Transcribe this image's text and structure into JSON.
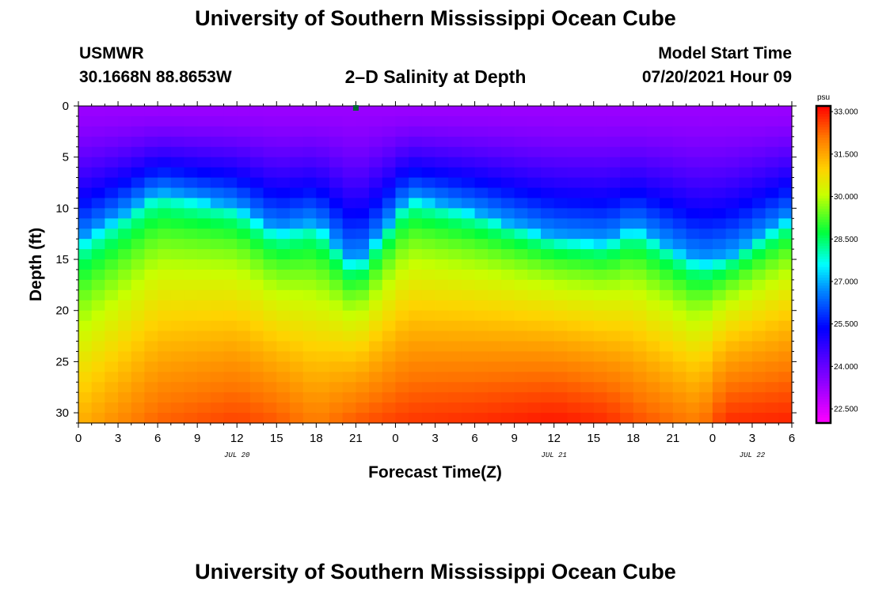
{
  "page": {
    "title_top": "University of Southern Mississippi Ocean Cube",
    "title_bottom": "University of Southern Mississippi Ocean Cube",
    "station": "USMWR",
    "coords": "30.1668N  88.8653W",
    "plot_title": "2–D Salinity at Depth",
    "model_start_label": "Model Start Time",
    "model_start_value": "07/20/2021 Hour 09"
  },
  "chart_data": {
    "type": "heatmap",
    "title": "2-D Salinity at Depth",
    "xlabel": "Forecast Time(Z)",
    "ylabel": "Depth (ft)",
    "x_hours_range": [
      0,
      54
    ],
    "x_tick_labels": [
      "0",
      "3",
      "6",
      "9",
      "12",
      "15",
      "18",
      "21",
      "0",
      "3",
      "6",
      "9",
      "12",
      "15",
      "18",
      "21",
      "0",
      "3",
      "6"
    ],
    "date_labels": [
      {
        "text": "JUL 20",
        "hour": 12
      },
      {
        "text": "JUL 21",
        "hour": 36
      },
      {
        "text": "JUL 22",
        "hour": 51
      }
    ],
    "ylim": [
      0,
      31
    ],
    "y_tick_labels": [
      "0",
      "5",
      "10",
      "15",
      "20",
      "25",
      "30"
    ],
    "y_ticks": [
      0,
      5,
      10,
      15,
      20,
      25,
      30
    ],
    "marker_hour": 21,
    "colorbar": {
      "units": "psu",
      "min": 22.0,
      "max": 33.2,
      "labels": [
        "33.000",
        "31.500",
        "30.000",
        "28.500",
        "27.000",
        "25.500",
        "24.000",
        "22.500"
      ],
      "label_values": [
        33.0,
        31.5,
        30.0,
        28.5,
        27.0,
        25.5,
        24.0,
        22.5
      ]
    },
    "profile_keys": [
      {
        "hour": 0,
        "cyan_depth": 13.5,
        "bottom_psu": 31.4
      },
      {
        "hour": 6,
        "cyan_depth": 8.5,
        "bottom_psu": 32.3
      },
      {
        "hour": 12,
        "cyan_depth": 10.0,
        "bottom_psu": 32.6
      },
      {
        "hour": 15,
        "cyan_depth": 12.5,
        "bottom_psu": 32.4
      },
      {
        "hour": 18,
        "cyan_depth": 11.5,
        "bottom_psu": 32.0
      },
      {
        "hour": 21,
        "cyan_depth": 16.0,
        "bottom_psu": 32.4
      },
      {
        "hour": 25,
        "cyan_depth": 9.0,
        "bottom_psu": 32.7
      },
      {
        "hour": 30,
        "cyan_depth": 10.5,
        "bottom_psu": 32.8
      },
      {
        "hour": 36,
        "cyan_depth": 13.0,
        "bottom_psu": 33.0
      },
      {
        "hour": 40,
        "cyan_depth": 13.5,
        "bottom_psu": 32.8
      },
      {
        "hour": 42,
        "cyan_depth": 12.0,
        "bottom_psu": 32.5
      },
      {
        "hour": 47,
        "cyan_depth": 15.5,
        "bottom_psu": 32.0
      },
      {
        "hour": 49,
        "cyan_depth": 15.0,
        "bottom_psu": 32.8
      },
      {
        "hour": 54,
        "cyan_depth": 11.0,
        "bottom_psu": 32.9
      }
    ],
    "surface_psu": 23.3,
    "cyan_psu": 27.0
  }
}
